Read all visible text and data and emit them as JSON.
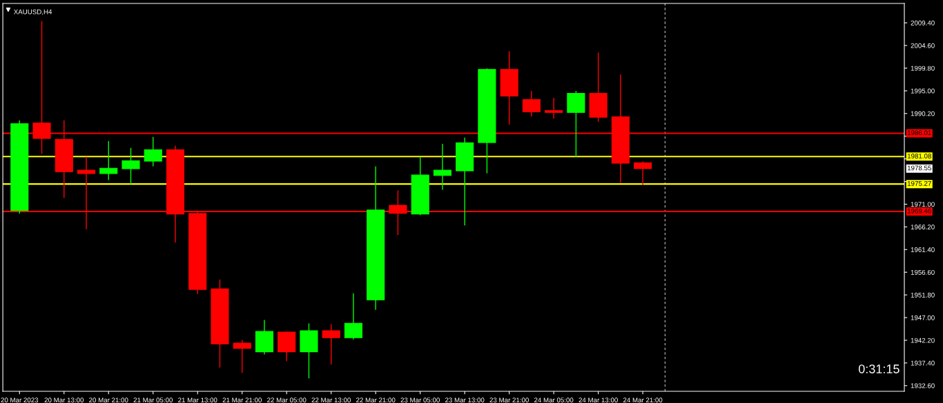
{
  "chart_data": {
    "type": "candlestick",
    "title": "XAUUSD,H4",
    "x": [
      "2023-03-20T05:00",
      "2023-03-20T09:00",
      "2023-03-20T13:00",
      "2023-03-20T17:00",
      "2023-03-20T21:00",
      "2023-03-21T01:00",
      "2023-03-21T05:00",
      "2023-03-21T09:00",
      "2023-03-21T13:00",
      "2023-03-21T17:00",
      "2023-03-21T21:00",
      "2023-03-22T01:00",
      "2023-03-22T05:00",
      "2023-03-22T09:00",
      "2023-03-22T13:00",
      "2023-03-22T17:00",
      "2023-03-22T21:00",
      "2023-03-23T01:00",
      "2023-03-23T05:00",
      "2023-03-23T09:00",
      "2023-03-23T13:00",
      "2023-03-23T17:00",
      "2023-03-23T21:00",
      "2023-03-24T01:00",
      "2023-03-24T05:00",
      "2023-03-24T09:00",
      "2023-03-24T13:00",
      "2023-03-24T17:00",
      "2023-03-24T21:00"
    ],
    "ohlc": [
      [
        1969.66,
        1988.64,
        1969.08,
        1988.06
      ],
      [
        1988.2,
        2009.69,
        1981.77,
        1984.91
      ],
      [
        1984.72,
        1988.64,
        1972.42,
        1977.9
      ],
      [
        1978.19,
        1980.95,
        1965.8,
        1977.5
      ],
      [
        1977.5,
        1984.28,
        1976.2,
        1978.62
      ],
      [
        1978.52,
        1982.83,
        1975.33,
        1980.22
      ],
      [
        1980.12,
        1985.15,
        1979.1,
        1982.54
      ],
      [
        1982.54,
        1983.27,
        1962.99,
        1968.94
      ],
      [
        1969.04,
        1969.33,
        1952.1,
        1952.97
      ],
      [
        1953.07,
        1954.96,
        1936.52,
        1941.45
      ],
      [
        1941.6,
        1942.18,
        1935.4,
        1940.49
      ],
      [
        1939.76,
        1946.39,
        1939.32,
        1944.07
      ],
      [
        1943.92,
        1943.92,
        1937.87,
        1939.76
      ],
      [
        1939.76,
        1945.67,
        1934.24,
        1944.21
      ],
      [
        1944.21,
        1945.52,
        1937.14,
        1942.76
      ],
      [
        1942.76,
        1952.05,
        1942.47,
        1945.81
      ],
      [
        1950.75,
        1978.91,
        1948.76,
        1969.77
      ],
      [
        1970.78,
        1973.83,
        1964.58,
        1969.08
      ],
      [
        1968.94,
        1980.95,
        1968.79,
        1977.17
      ],
      [
        1977.07,
        1983.7,
        1974.16,
        1978.19
      ],
      [
        1978.08,
        1985.01,
        1966.62,
        1983.99
      ],
      [
        1984.04,
        1999.67,
        1977.65,
        1999.53
      ],
      [
        1999.53,
        2003.3,
        1987.96,
        1993.91
      ],
      [
        1993.14,
        1994.88,
        1989.7,
        1990.57
      ],
      [
        1990.82,
        1993.43,
        1989.26,
        1990.43
      ],
      [
        1990.43,
        1994.88,
        1981.13,
        1994.45
      ],
      [
        1994.45,
        2003.01,
        1988.54,
        1989.41
      ],
      [
        1989.51,
        1998.37,
        1975.62,
        1979.68
      ],
      [
        1979.78,
        1979.93,
        1975.18,
        1978.55
      ]
    ],
    "colors": [
      "#00ff00",
      "#ff0000",
      "#ff0000",
      "#ff0000",
      "#00ff00",
      "#00ff00",
      "#00ff00",
      "#ff0000",
      "#ff0000",
      "#ff0000",
      "#ff0000",
      "#00ff00",
      "#ff0000",
      "#00ff00",
      "#ff0000",
      "#00ff00",
      "#00ff00",
      "#ff0000",
      "#00ff00",
      "#00ff00",
      "#00ff00",
      "#00ff00",
      "#ff0000",
      "#ff0000",
      "#ff0000",
      "#00ff00",
      "#ff0000",
      "#ff0000",
      "#ff0000"
    ],
    "xlim": [
      "2023-03-20T02:00",
      "2023-03-26T20:00"
    ],
    "xticks": [
      {
        "value": "2023-03-20T05:00",
        "label": "20 Mar 2023"
      },
      {
        "value": "2023-03-20T13:00",
        "label": "20 Mar 13:00"
      },
      {
        "value": "2023-03-20T21:00",
        "label": "20 Mar 21:00"
      },
      {
        "value": "2023-03-21T05:00",
        "label": "21 Mar 05:00"
      },
      {
        "value": "2023-03-21T13:00",
        "label": "21 Mar 13:00"
      },
      {
        "value": "2023-03-21T21:00",
        "label": "21 Mar 21:00"
      },
      {
        "value": "2023-03-22T05:00",
        "label": "22 Mar 05:00"
      },
      {
        "value": "2023-03-22T13:00",
        "label": "22 Mar 13:00"
      },
      {
        "value": "2023-03-22T21:00",
        "label": "22 Mar 21:00"
      },
      {
        "value": "2023-03-23T05:00",
        "label": "23 Mar 05:00"
      },
      {
        "value": "2023-03-23T13:00",
        "label": "23 Mar 13:00"
      },
      {
        "value": "2023-03-23T21:00",
        "label": "23 Mar 21:00"
      },
      {
        "value": "2023-03-24T05:00",
        "label": "24 Mar 05:00"
      },
      {
        "value": "2023-03-24T13:00",
        "label": "24 Mar 13:00"
      },
      {
        "value": "2023-03-24T21:00",
        "label": "24 Mar 21:00"
      }
    ],
    "ylim": [
      1931.4,
      2013.5
    ],
    "yticks": [
      {
        "value": 1932.6,
        "label": "1932.60"
      },
      {
        "value": 1937.4,
        "label": "1937.40"
      },
      {
        "value": 1942.2,
        "label": "1942.20"
      },
      {
        "value": 1947.0,
        "label": "1947.00"
      },
      {
        "value": 1951.8,
        "label": "1951.80"
      },
      {
        "value": 1956.6,
        "label": "1956.60"
      },
      {
        "value": 1961.4,
        "label": "1961.40"
      },
      {
        "value": 1966.2,
        "label": "1966.20"
      },
      {
        "value": 1971.0,
        "label": "1971.00"
      },
      {
        "value": 1975.8,
        "label": null
      },
      {
        "value": 1980.6,
        "label": null
      },
      {
        "value": 1985.4,
        "label": null
      },
      {
        "value": 1990.2,
        "label": "1990.20"
      },
      {
        "value": 1995.0,
        "label": "1995.00"
      },
      {
        "value": 1999.8,
        "label": "1999.80"
      },
      {
        "value": 2004.6,
        "label": "2004.60"
      },
      {
        "value": 2009.4,
        "label": "2009.40"
      }
    ],
    "ref_lines": [
      {
        "axis": "y",
        "value": 1986.01,
        "label": "1986.01",
        "color": "#ff0000"
      },
      {
        "axis": "y",
        "value": 1981.08,
        "label": "1981.08",
        "color": "#ffff00"
      },
      {
        "axis": "y",
        "value": 1975.27,
        "label": "1975.27",
        "color": "#ffff00"
      },
      {
        "axis": "y",
        "value": 1969.46,
        "label": "1969.46",
        "color": "#ff0000"
      },
      {
        "axis": "x",
        "value": "2023-03-25T01:00",
        "color": "#c0c0c0",
        "line_style": "dashed"
      }
    ],
    "annotations": [
      "1978.55",
      "0:31:15"
    ]
  }
}
